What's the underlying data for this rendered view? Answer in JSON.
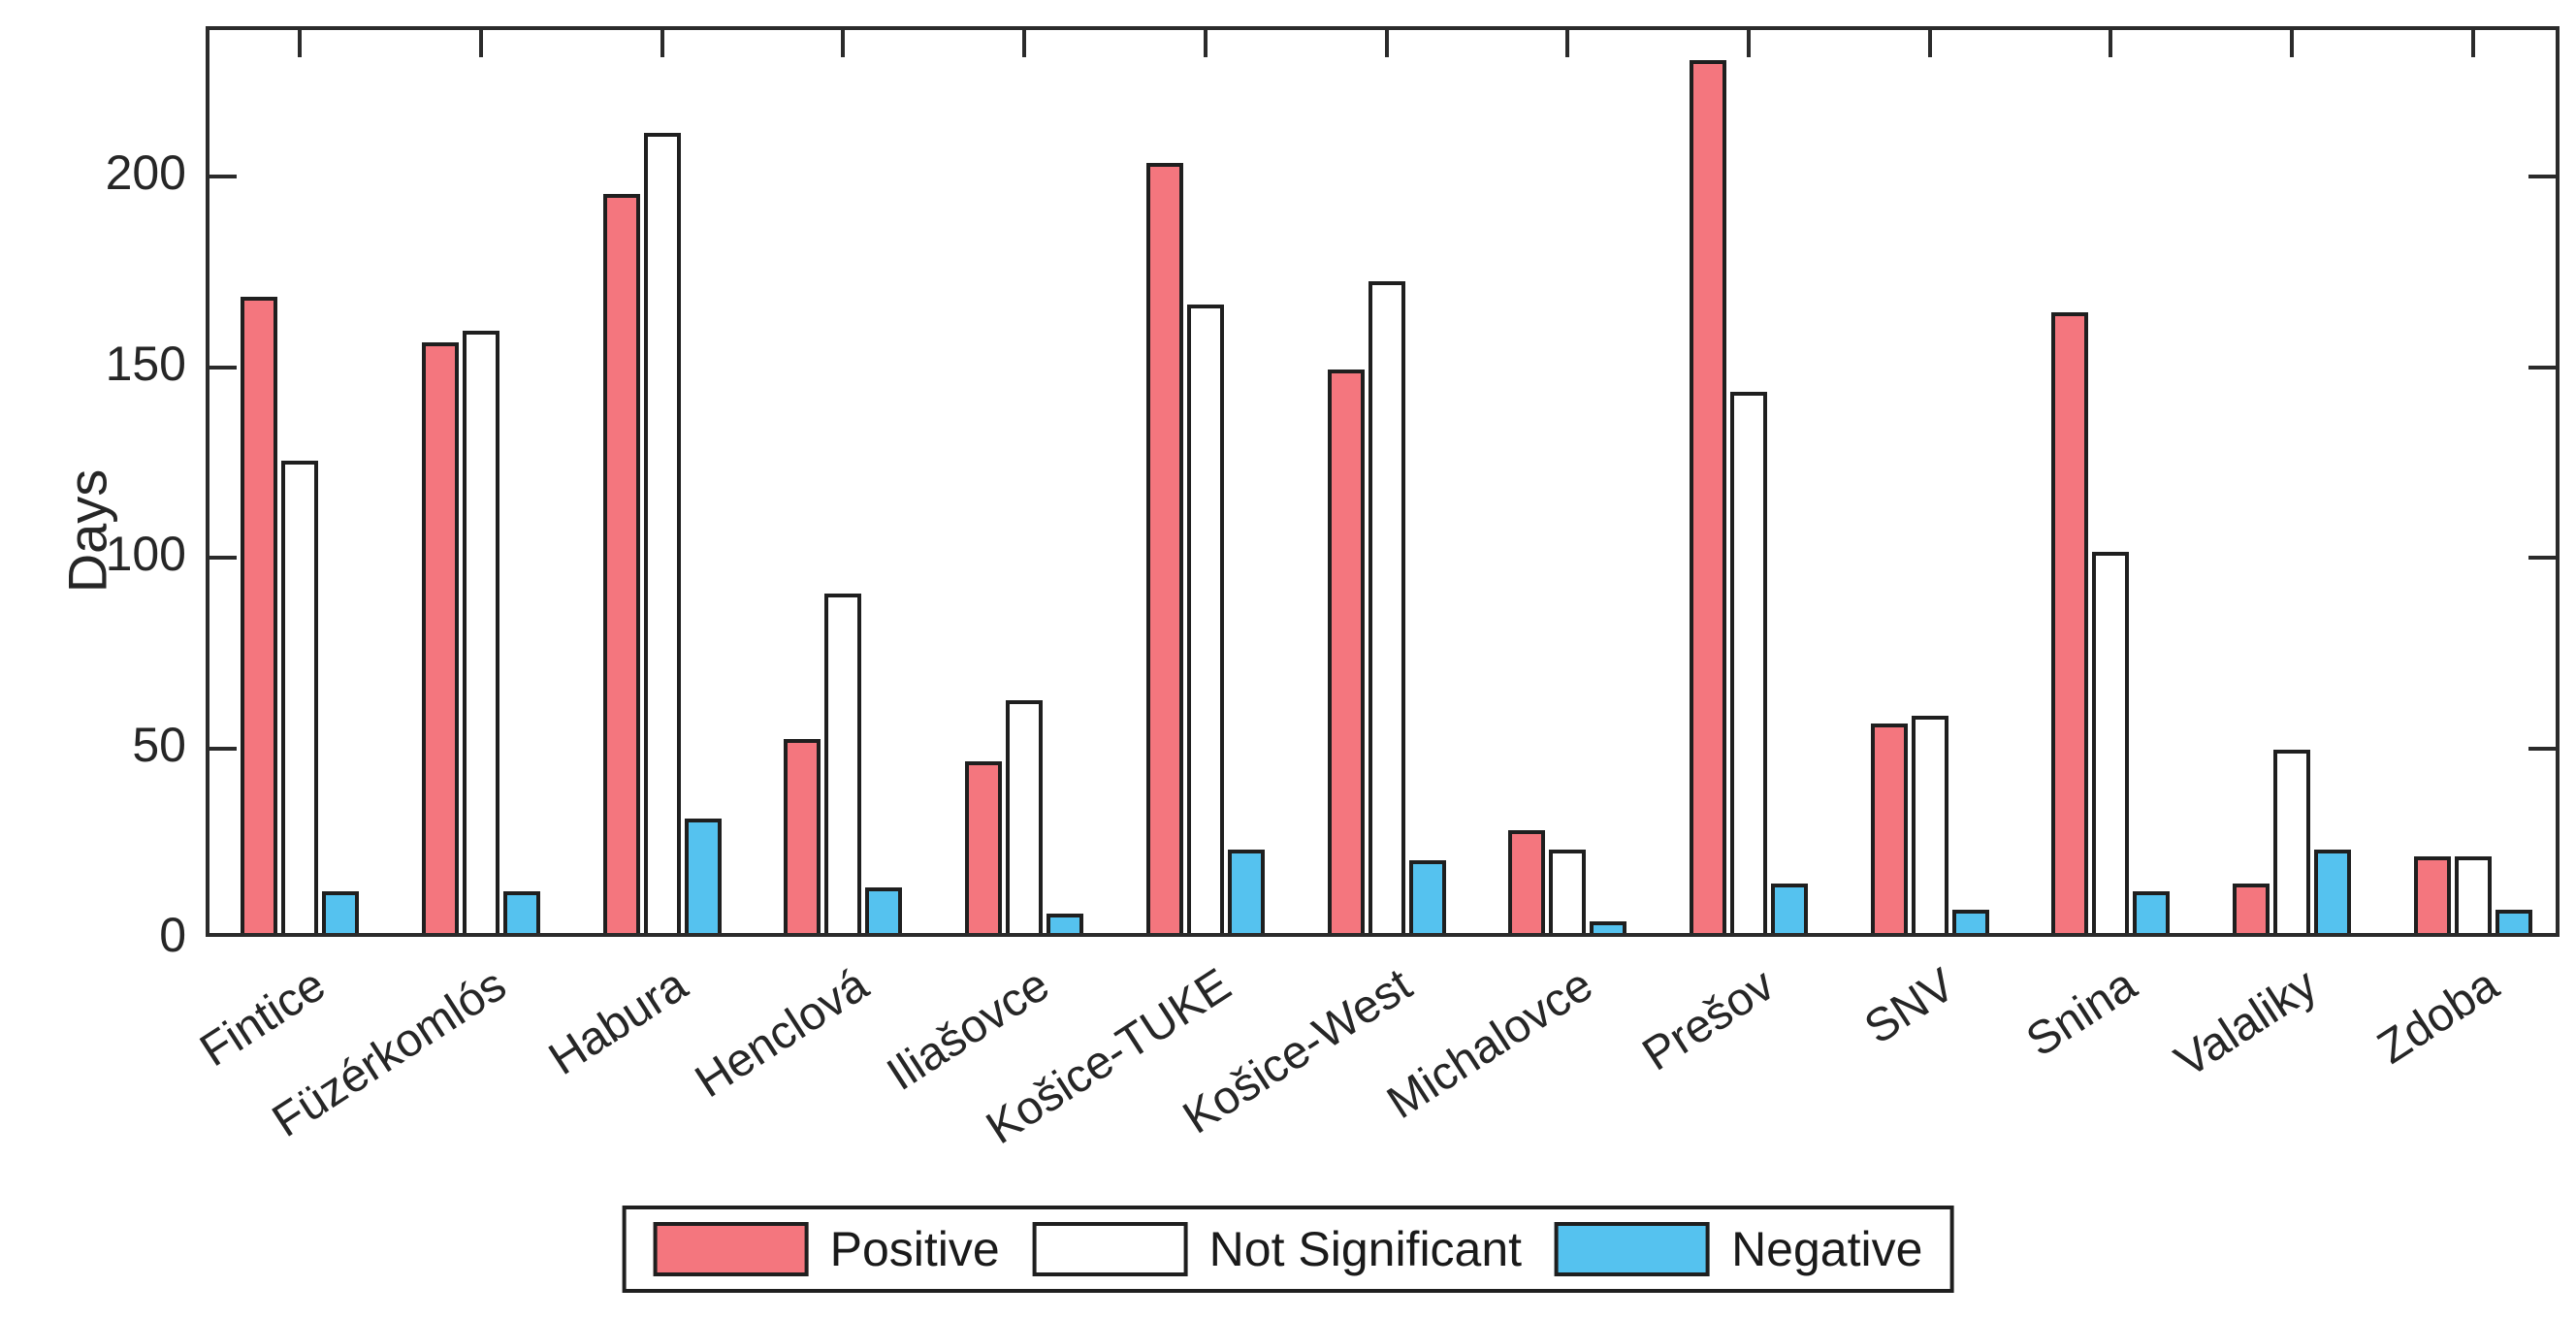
{
  "figure": {
    "background": "#ffffff",
    "axis_color": "#2b2b2b"
  },
  "axes": {
    "ylabel": "Days",
    "yticks": [
      0,
      50,
      100,
      150,
      200
    ],
    "ymax": 239
  },
  "legend": {
    "items": [
      {
        "label": "Positive",
        "color": "#f4767e"
      },
      {
        "label": "Not Significant",
        "color": "#ffffff"
      },
      {
        "label": "Negative",
        "color": "#55c2ef"
      }
    ]
  },
  "chart_data": {
    "type": "bar",
    "title": "",
    "xlabel": "",
    "ylabel": "Days",
    "ylim": [
      0,
      239
    ],
    "yticks": [
      0,
      50,
      100,
      150,
      200
    ],
    "grid": false,
    "legend_position": "bottom-center",
    "categories": [
      "Fintice",
      "Füzérkomlós",
      "Habura",
      "Henclová",
      "Iliašovce",
      "Košice-TUKE",
      "Košice-West",
      "Michalovce",
      "Prešov",
      "SNV",
      "Snina",
      "Valaliky",
      "Zdoba"
    ],
    "series": [
      {
        "name": "Positive",
        "color": "#f4767e",
        "values": [
          167,
          155,
          194,
          51,
          45,
          202,
          148,
          27,
          229,
          55,
          163,
          13,
          20
        ]
      },
      {
        "name": "Not Significant",
        "color": "#ffffff",
        "values": [
          124,
          158,
          210,
          89,
          61,
          165,
          171,
          22,
          142,
          57,
          100,
          48,
          20
        ]
      },
      {
        "name": "Negative",
        "color": "#55c2ef",
        "values": [
          11,
          11,
          30,
          12,
          5,
          22,
          19,
          3,
          13,
          6,
          11,
          22,
          6
        ]
      }
    ]
  }
}
